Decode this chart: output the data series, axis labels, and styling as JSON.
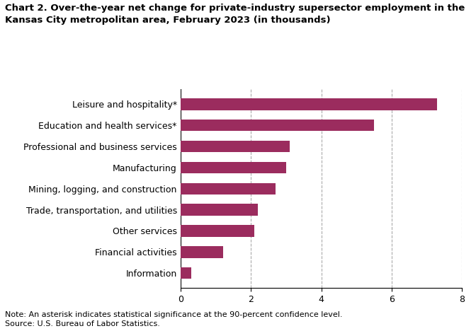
{
  "title_line1": "Chart 2. Over-the-year net change for private-industry supersector employment in the",
  "title_line2": "Kansas City metropolitan area, February 2023 (in thousands)",
  "categories": [
    "Information",
    "Financial activities",
    "Other services",
    "Trade, transportation, and utilities",
    "Mining, logging, and construction",
    "Manufacturing",
    "Professional and business services",
    "Education and health services*",
    "Leisure and hospitality*"
  ],
  "values": [
    0.3,
    1.2,
    2.1,
    2.2,
    2.7,
    3.0,
    3.1,
    5.5,
    7.3
  ],
  "bar_color": "#9b2c5e",
  "xlim": [
    0,
    8
  ],
  "xticks": [
    0,
    2,
    4,
    6,
    8
  ],
  "grid_color": "#aaaaaa",
  "note_line1": "Note: An asterisk indicates statistical significance at the 90-percent confidence level.",
  "note_line2": "Source: U.S. Bureau of Labor Statistics.",
  "background_color": "#ffffff",
  "title_fontsize": 9.5,
  "label_fontsize": 9.0,
  "tick_fontsize": 9.0,
  "note_fontsize": 8.0
}
